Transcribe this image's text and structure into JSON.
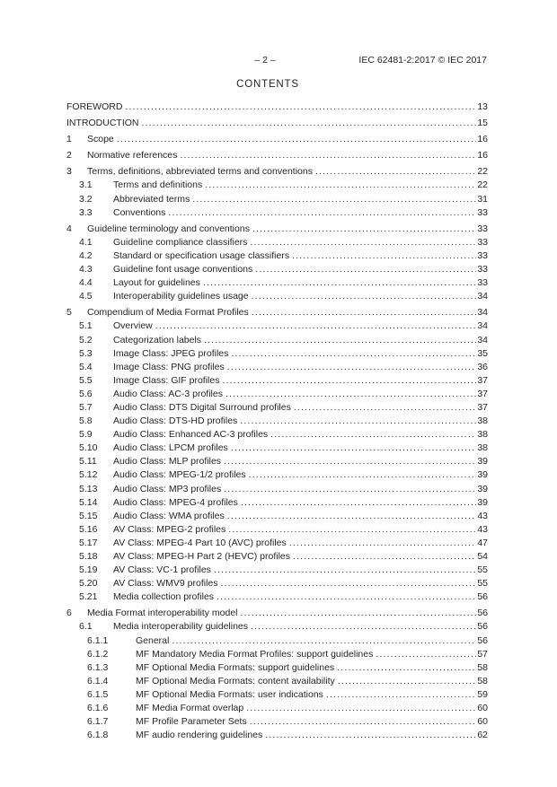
{
  "header": {
    "page_marker": "– 2 –",
    "doc_ref": "IEC 62481-2:2017 © IEC 2017"
  },
  "title": "CONTENTS",
  "toc_entries": [
    {
      "label": "",
      "title": "FOREWORD",
      "page": "13",
      "level": 0
    },
    {
      "label": "",
      "title": "INTRODUCTION",
      "page": "15",
      "level": 0
    },
    {
      "label": "1",
      "title": "Scope",
      "page": "16",
      "level": 0
    },
    {
      "label": "2",
      "title": "Normative references",
      "page": "16",
      "level": 0
    },
    {
      "label": "3",
      "title": "Terms, definitions, abbreviated terms and conventions",
      "page": "22",
      "level": 0
    },
    {
      "label": "3.1",
      "title": "Terms and definitions",
      "page": "22",
      "level": 1
    },
    {
      "label": "3.2",
      "title": "Abbreviated terms",
      "page": "31",
      "level": 1
    },
    {
      "label": "3.3",
      "title": "Conventions",
      "page": "33",
      "level": 1
    },
    {
      "label": "4",
      "title": "Guideline terminology and conventions",
      "page": "33",
      "level": 0
    },
    {
      "label": "4.1",
      "title": "Guideline compliance classifiers",
      "page": "33",
      "level": 1
    },
    {
      "label": "4.2",
      "title": "Standard or specification usage classifiers",
      "page": "33",
      "level": 1
    },
    {
      "label": "4.3",
      "title": "Guideline font usage conventions",
      "page": "33",
      "level": 1
    },
    {
      "label": "4.4",
      "title": "Layout for guidelines",
      "page": "33",
      "level": 1
    },
    {
      "label": "4.5",
      "title": "Interoperability guidelines usage",
      "page": "34",
      "level": 1
    },
    {
      "label": "5",
      "title": "Compendium of Media Format Profiles",
      "page": "34",
      "level": 0
    },
    {
      "label": "5.1",
      "title": "Overview",
      "page": "34",
      "level": 1
    },
    {
      "label": "5.2",
      "title": "Categorization labels",
      "page": "34",
      "level": 1
    },
    {
      "label": "5.3",
      "title": "Image Class: JPEG profiles",
      "page": "35",
      "level": 1
    },
    {
      "label": "5.4",
      "title": "Image Class: PNG profiles",
      "page": "36",
      "level": 1
    },
    {
      "label": "5.5",
      "title": "Image Class: GIF profiles",
      "page": "37",
      "level": 1
    },
    {
      "label": "5.6",
      "title": "Audio Class: AC-3 profiles",
      "page": "37",
      "level": 1
    },
    {
      "label": "5.7",
      "title": "Audio Class: DTS Digital Surround profiles",
      "page": "37",
      "level": 1
    },
    {
      "label": "5.8",
      "title": "Audio Class: DTS-HD profiles",
      "page": "38",
      "level": 1
    },
    {
      "label": "5.9",
      "title": "Audio Class: Enhanced AC-3 profiles",
      "page": "38",
      "level": 1
    },
    {
      "label": "5.10",
      "title": "Audio Class: LPCM profiles",
      "page": "38",
      "level": 1
    },
    {
      "label": "5.11",
      "title": "Audio Class: MLP profiles",
      "page": "39",
      "level": 1
    },
    {
      "label": "5.12",
      "title": "Audio Class: MPEG-1/2 profiles",
      "page": "39",
      "level": 1
    },
    {
      "label": "5.13",
      "title": "Audio Class: MP3 profiles",
      "page": "39",
      "level": 1
    },
    {
      "label": "5.14",
      "title": "Audio Class: MPEG-4 profiles",
      "page": "39",
      "level": 1
    },
    {
      "label": "5.15",
      "title": "Audio Class: WMA profiles",
      "page": "43",
      "level": 1
    },
    {
      "label": "5.16",
      "title": "AV Class: MPEG-2 profiles",
      "page": "43",
      "level": 1
    },
    {
      "label": "5.17",
      "title": "AV Class: MPEG-4 Part 10 (AVC) profiles",
      "page": "47",
      "level": 1
    },
    {
      "label": "5.18",
      "title": "AV Class: MPEG-H Part 2 (HEVC) profiles",
      "page": "54",
      "level": 1
    },
    {
      "label": "5.19",
      "title": "AV Class: VC-1 profiles",
      "page": "55",
      "level": 1
    },
    {
      "label": "5.20",
      "title": "AV Class: WMV9 profiles",
      "page": "55",
      "level": 1
    },
    {
      "label": "5.21",
      "title": "Media collection profiles",
      "page": "56",
      "level": 1
    },
    {
      "label": "6",
      "title": "Media Format interoperability model",
      "page": "56",
      "level": 0
    },
    {
      "label": "6.1",
      "title": "Media interoperability guidelines",
      "page": "56",
      "level": 1
    },
    {
      "label": "6.1.1",
      "title": "General",
      "page": "56",
      "level": 2
    },
    {
      "label": "6.1.2",
      "title": "MF Mandatory Media Format Profiles: support guidelines",
      "page": "57",
      "level": 2
    },
    {
      "label": "6.1.3",
      "title": "MF Optional Media Formats: support guidelines",
      "page": "58",
      "level": 2
    },
    {
      "label": "6.1.4",
      "title": "MF Optional Media Formats: content availability",
      "page": "58",
      "level": 2
    },
    {
      "label": "6.1.5",
      "title": "MF Optional Media Formats: user indications",
      "page": "59",
      "level": 2
    },
    {
      "label": "6.1.6",
      "title": "MF Media Format overlap",
      "page": "60",
      "level": 2
    },
    {
      "label": "6.1.7",
      "title": "MF Profile Parameter Sets",
      "page": "60",
      "level": 2
    },
    {
      "label": "6.1.8",
      "title": "MF audio rendering guidelines",
      "page": "62",
      "level": 2
    }
  ]
}
